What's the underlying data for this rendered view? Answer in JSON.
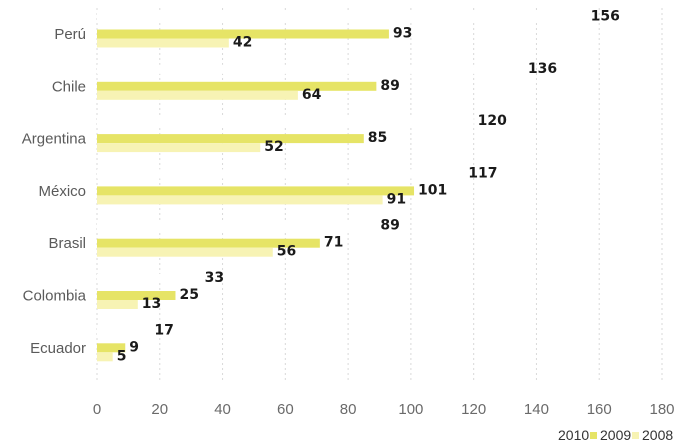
{
  "chart_data": {
    "type": "bar",
    "orientation": "horizontal",
    "categories": [
      "Perú",
      "Chile",
      "Argentina",
      "México",
      "Brasil",
      "Colombia",
      "Ecuador"
    ],
    "series": [
      {
        "name": "2010",
        "values": [
          156,
          136,
          120,
          117,
          89,
          33,
          17
        ],
        "color": "#ffffff"
      },
      {
        "name": "2009",
        "values": [
          93,
          89,
          85,
          101,
          71,
          25,
          9
        ],
        "color": "#e6e466"
      },
      {
        "name": "2008",
        "values": [
          42,
          64,
          52,
          91,
          56,
          13,
          5
        ],
        "color": "#f7f3b4"
      }
    ],
    "xlim": [
      0,
      180
    ],
    "xticks": [
      "0",
      "20",
      "40",
      "60",
      "80",
      "100",
      "120",
      "140",
      "160",
      "180"
    ],
    "grid": true,
    "legend_position": "bottom-right",
    "title": "",
    "xlabel": "",
    "ylabel": ""
  }
}
